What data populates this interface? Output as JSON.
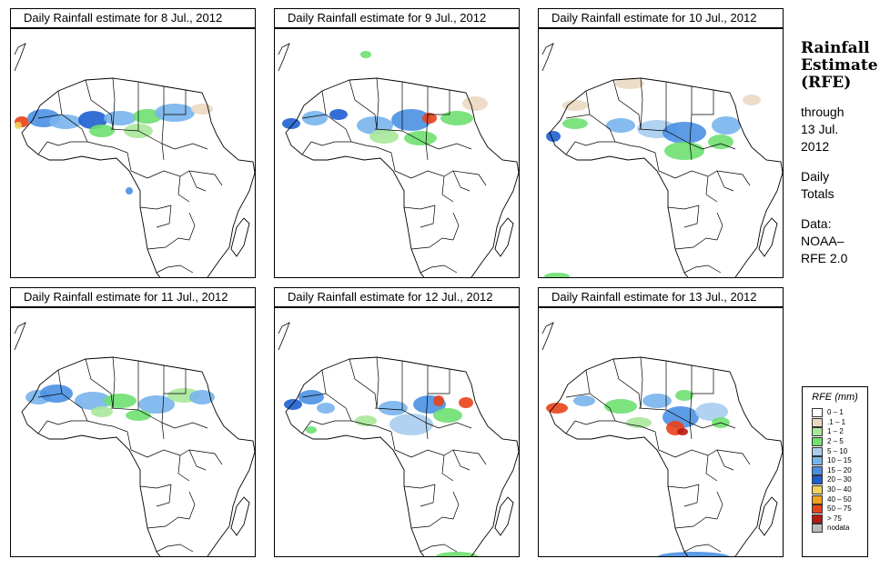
{
  "panels": [
    {
      "title": "Daily Rainfall estimate for  8 Jul., 2012"
    },
    {
      "title": "Daily Rainfall estimate for  9 Jul., 2012"
    },
    {
      "title": "Daily Rainfall estimate for  10 Jul., 2012"
    },
    {
      "title": "Daily Rainfall estimate for  11 Jul., 2012"
    },
    {
      "title": "Daily Rainfall estimate for  12 Jul., 2012"
    },
    {
      "title": "Daily Rainfall estimate for  13 Jul., 2012"
    }
  ],
  "info": {
    "heading_line1": "Rainfall",
    "heading_line2": "Estimate",
    "heading_line3": "(RFE)",
    "through": "through",
    "through_date1": "13 Jul.",
    "through_date2": "2012",
    "totals1": "Daily",
    "totals2": "Totals",
    "data_label": "Data:",
    "source1": "NOAA–",
    "source2": "RFE 2.0"
  },
  "legend": {
    "title": "RFE (mm)",
    "items": [
      {
        "label": "0 – 1",
        "color": "#ffffff"
      },
      {
        "label": ".1 – 1",
        "color": "#ead8c2"
      },
      {
        "label": "1 – 2",
        "color": "#a8e89a"
      },
      {
        "label": "2 – 5",
        "color": "#6ee070"
      },
      {
        "label": "5 – 10",
        "color": "#a9cdee"
      },
      {
        "label": "10 – 15",
        "color": "#78b4ec"
      },
      {
        "label": "15 – 20",
        "color": "#4a90e2"
      },
      {
        "label": "20 – 30",
        "color": "#1e5fd0"
      },
      {
        "label": "30 – 40",
        "color": "#f2d25a"
      },
      {
        "label": "40 – 50",
        "color": "#f3a21e"
      },
      {
        "label": "50 – 75",
        "color": "#e8431a"
      },
      {
        "label": "> 75",
        "color": "#b81a12"
      },
      {
        "label": "nodata",
        "color": "#bdbdbd"
      }
    ]
  }
}
